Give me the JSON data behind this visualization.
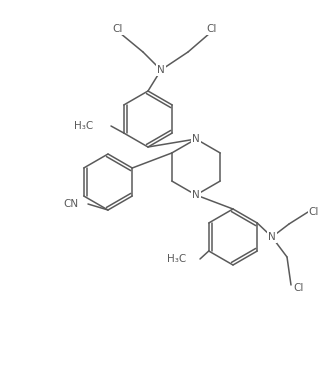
{
  "bg_color": "#ffffff",
  "line_color": "#5a5a5a",
  "text_color": "#5a5a5a",
  "line_width": 1.1,
  "figsize": [
    3.24,
    3.67
  ],
  "dpi": 100,
  "xlim": [
    0,
    324
  ],
  "ylim": [
    0,
    367
  ]
}
